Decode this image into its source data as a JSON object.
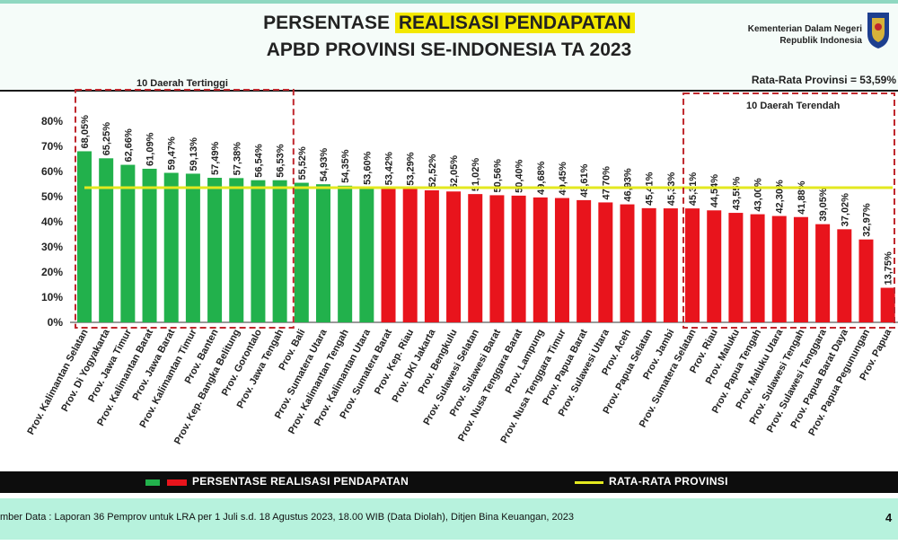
{
  "header": {
    "title_line1_prefix": "PERSENTASE ",
    "title_line1_highlight": "REALISASI PENDAPATAN",
    "title_line2": "APBD PROVINSI SE-INDONESIA TA 2023",
    "ministry_line1": "Kementerian Dalam Negeri",
    "ministry_line2": "Republik Indonesia",
    "average_label": "Rata-Rata Provinsi = 53,59%"
  },
  "annotations": {
    "top10": "10 Daerah Tertinggi",
    "bottom10": "10 Daerah Terendah"
  },
  "legend": {
    "bars_label": "PERSENTASE REALISASI PENDAPATAN",
    "line_label": "RATA-RATA PROVINSI"
  },
  "footer": {
    "source": "mber Data : Laporan 36 Pemprov untuk LRA per 1 Juli s.d. 18 Agustus 2023, 18.00 WIB (Data Diolah), Ditjen Bina Keuangan, 2023",
    "page": "4"
  },
  "colors": {
    "above_average": "#22b14c",
    "below_average": "#e8141c",
    "average_line": "#e3e81f",
    "annotation_box": "#c0272d"
  },
  "chart_data": {
    "type": "bar",
    "title": "PERSENTASE REALISASI PENDAPATAN APBD PROVINSI SE-INDONESIA TA 2023",
    "ylim": [
      0,
      80
    ],
    "yticks": [
      "0%",
      "10%",
      "20%",
      "30%",
      "40%",
      "50%",
      "60%",
      "70%",
      "80%"
    ],
    "grid": false,
    "average": 53.59,
    "categories": [
      "Prov. Kalimantan Selatan",
      "Prov. Di Yogyakarta",
      "Prov. Jawa Timur",
      "Prov. Kalimantan Barat",
      "Prov. Jawa Barat",
      "Prov. Kalimantan Timur",
      "Prov. Banten",
      "Prov. Kep. Bangka Belitung",
      "Prov. Gorontalo",
      "Prov. Jawa Tengah",
      "Prov. Bali",
      "Prov. Sumatera Utara",
      "Prov. Kalimantan Tengah",
      "Prov. Kalimantan Utara",
      "Prov. Sumatera Barat",
      "Prov. Kep. Riau",
      "Prov. DKI Jakarta",
      "Prov. Bengkulu",
      "Prov. Sulawesi Selatan",
      "Prov. Sulawesi Barat",
      "Prov. Nusa Tenggara Barat",
      "Prov. Lampung",
      "Prov. Nusa Tenggara Timur",
      "Prov. Papua Barat",
      "Prov. Sulawesi Utara",
      "Prov. Aceh",
      "Prov. Papua Selatan",
      "Prov. Jambi",
      "Prov. Sumatera Selatan",
      "Prov. Riau",
      "Prov. Maluku",
      "Prov. Papua Tengah",
      "Prov. Maluku Utara",
      "Prov. Sulawesi Tengah",
      "Prov. Sulawesi Tenggara",
      "Prov. Papua Barat Daya",
      "Prov. Papua Pegunungan",
      "Prov. Papua"
    ],
    "values": [
      68.05,
      65.25,
      62.66,
      61.09,
      59.47,
      59.13,
      57.49,
      57.38,
      56.54,
      56.53,
      55.52,
      54.93,
      54.35,
      53.6,
      53.42,
      53.29,
      52.52,
      52.05,
      51.02,
      50.56,
      50.4,
      49.68,
      49.45,
      48.61,
      47.7,
      46.93,
      45.41,
      45.33,
      45.31,
      44.54,
      43.55,
      43.0,
      42.3,
      41.88,
      39.05,
      37.02,
      32.97,
      13.75
    ],
    "value_labels": [
      "68,05%",
      "65,25%",
      "62,66%",
      "61,09%",
      "59,47%",
      "59,13%",
      "57,49%",
      "57,38%",
      "56,54%",
      "56,53%",
      "55,52%",
      "54,93%",
      "54,35%",
      "53,60%",
      "53,42%",
      "53,29%",
      "52,52%",
      "52,05%",
      "51,02%",
      "50,56%",
      "50,40%",
      "49,68%",
      "49,45%",
      "48,61%",
      "47,70%",
      "46,93%",
      "45,41%",
      "45,33%",
      "45,31%",
      "44,54%",
      "43,55%",
      "43,00%",
      "42,30%",
      "41,88%",
      "39,05%",
      "37,02%",
      "32,97%",
      "13,75%"
    ],
    "series": [
      {
        "name": "PERSENTASE REALISASI PENDAPATAN"
      },
      {
        "name": "RATA-RATA PROVINSI"
      }
    ]
  }
}
